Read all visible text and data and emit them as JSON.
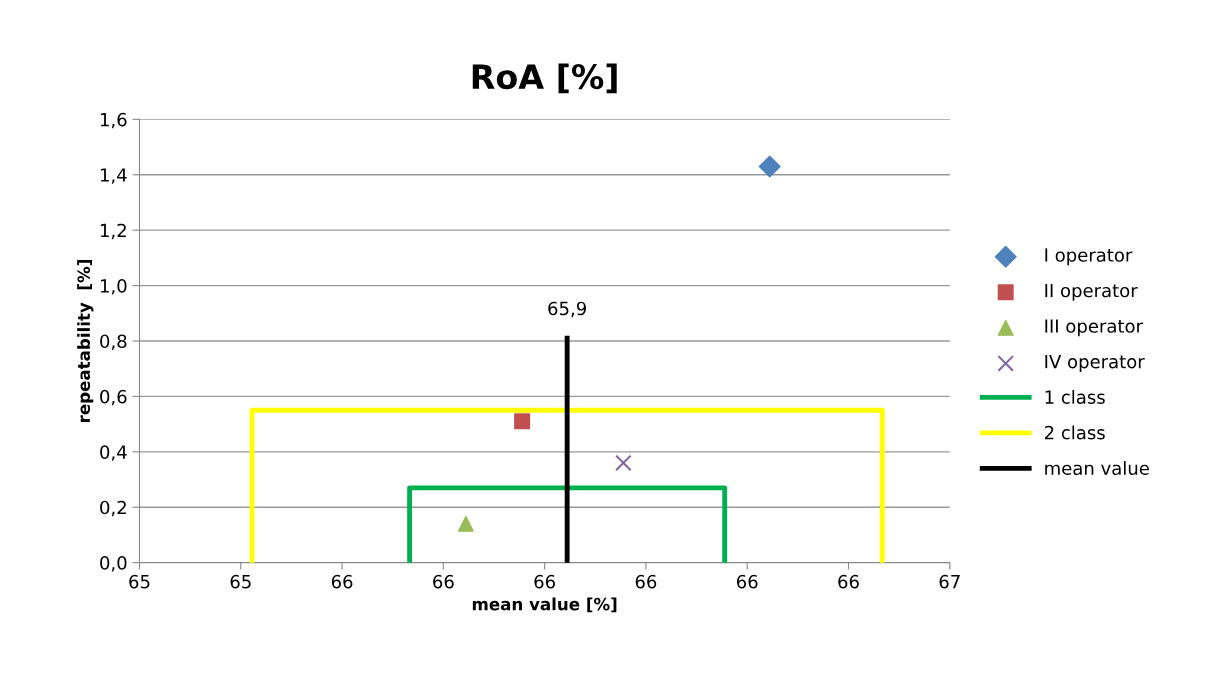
{
  "chart_data": {
    "type": "scatter",
    "title": "RoA [%]",
    "xlabel": "mean value [%]",
    "ylabel": "repeatability  [%]",
    "xlim": [
      65.14,
      66.58
    ],
    "xticks": [
      {
        "value": 65.14,
        "label": "65"
      },
      {
        "value": 65.32,
        "label": "65"
      },
      {
        "value": 65.5,
        "label": "66"
      },
      {
        "value": 65.68,
        "label": "66"
      },
      {
        "value": 65.86,
        "label": "66"
      },
      {
        "value": 66.04,
        "label": "66"
      },
      {
        "value": 66.22,
        "label": "66"
      },
      {
        "value": 66.4,
        "label": "66"
      },
      {
        "value": 66.58,
        "label": "67"
      }
    ],
    "ylim": [
      0,
      1.6
    ],
    "yticks": [
      {
        "value": 0,
        "label": "0,0"
      },
      {
        "value": 0.2,
        "label": "0,2"
      },
      {
        "value": 0.4,
        "label": "0,4"
      },
      {
        "value": 0.6,
        "label": "0,6"
      },
      {
        "value": 0.8,
        "label": "0,8"
      },
      {
        "value": 1.0,
        "label": "1,0"
      },
      {
        "value": 1.2,
        "label": "1,2"
      },
      {
        "value": 1.4,
        "label": "1,4"
      },
      {
        "value": 1.6,
        "label": "1,6"
      }
    ],
    "grid": "y",
    "legend": "right",
    "series": [
      {
        "name": "I operator",
        "marker": "diamond",
        "color": "#4f81bd",
        "x": [
          66.26
        ],
        "values": [
          1.43
        ]
      },
      {
        "name": "II operator",
        "marker": "square",
        "color": "#c0504d",
        "x": [
          65.82
        ],
        "values": [
          0.51
        ]
      },
      {
        "name": "III operator",
        "marker": "triangle",
        "color": "#9bbb59",
        "x": [
          65.72
        ],
        "values": [
          0.14
        ]
      },
      {
        "name": "IV operator",
        "marker": "cross",
        "color": "#8064a2",
        "x": [
          66.0
        ],
        "values": [
          0.36
        ]
      },
      {
        "name": "1 class",
        "type": "line",
        "color": "#00b050",
        "x": [
          65.62,
          65.62,
          66.18,
          66.18
        ],
        "values": [
          0,
          0.27,
          0.27,
          0
        ]
      },
      {
        "name": "2 class",
        "type": "line",
        "color": "#ffff00",
        "x": [
          65.34,
          65.34,
          66.46,
          66.46
        ],
        "values": [
          0,
          0.55,
          0.55,
          0
        ]
      },
      {
        "name": "mean value",
        "type": "line",
        "color": "#000000",
        "x": [
          65.9,
          65.9
        ],
        "values": [
          0,
          0.81
        ]
      }
    ],
    "annotations": [
      {
        "text": "65,9",
        "x": 65.9,
        "y": 0.81
      }
    ]
  }
}
